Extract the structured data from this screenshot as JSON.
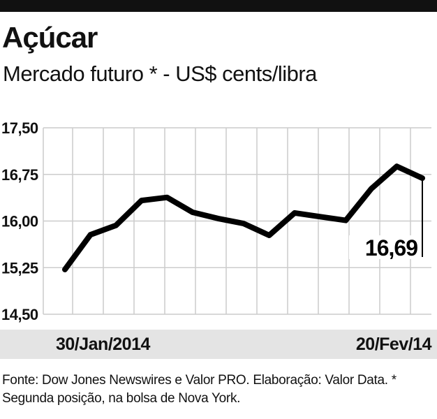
{
  "header": {
    "title": "Açúcar",
    "subtitle": "Mercado futuro * -  US$ cents/libra"
  },
  "footer": {
    "source": "Fonte: Dow Jones Newswires e Valor PRO. Elaboração: Valor Data. * Segunda posição, na bolsa de Nova York."
  },
  "chart_data": {
    "type": "line",
    "title": "Açúcar",
    "subtitle": "Mercado futuro * -  US$ cents/libra",
    "xlabel": "",
    "ylabel": "",
    "x_tick_labels": [
      "30/Jan/2014",
      "20/Fev/14"
    ],
    "y_ticks": [
      "17,50",
      "16,75",
      "16,00",
      "15,25",
      "14,50"
    ],
    "ylim": [
      14.5,
      17.5
    ],
    "grid": true,
    "series": [
      {
        "values": [
          15.22,
          15.78,
          15.93,
          16.33,
          16.38,
          16.14,
          16.04,
          15.96,
          15.77,
          16.13,
          16.07,
          16.01,
          16.52,
          16.88,
          16.69
        ]
      }
    ],
    "annotation": {
      "label": "16,69",
      "value": 16.69
    },
    "colors": {
      "line": "#000000",
      "grid": "#cccccc",
      "band": "#e4e4e4"
    }
  }
}
